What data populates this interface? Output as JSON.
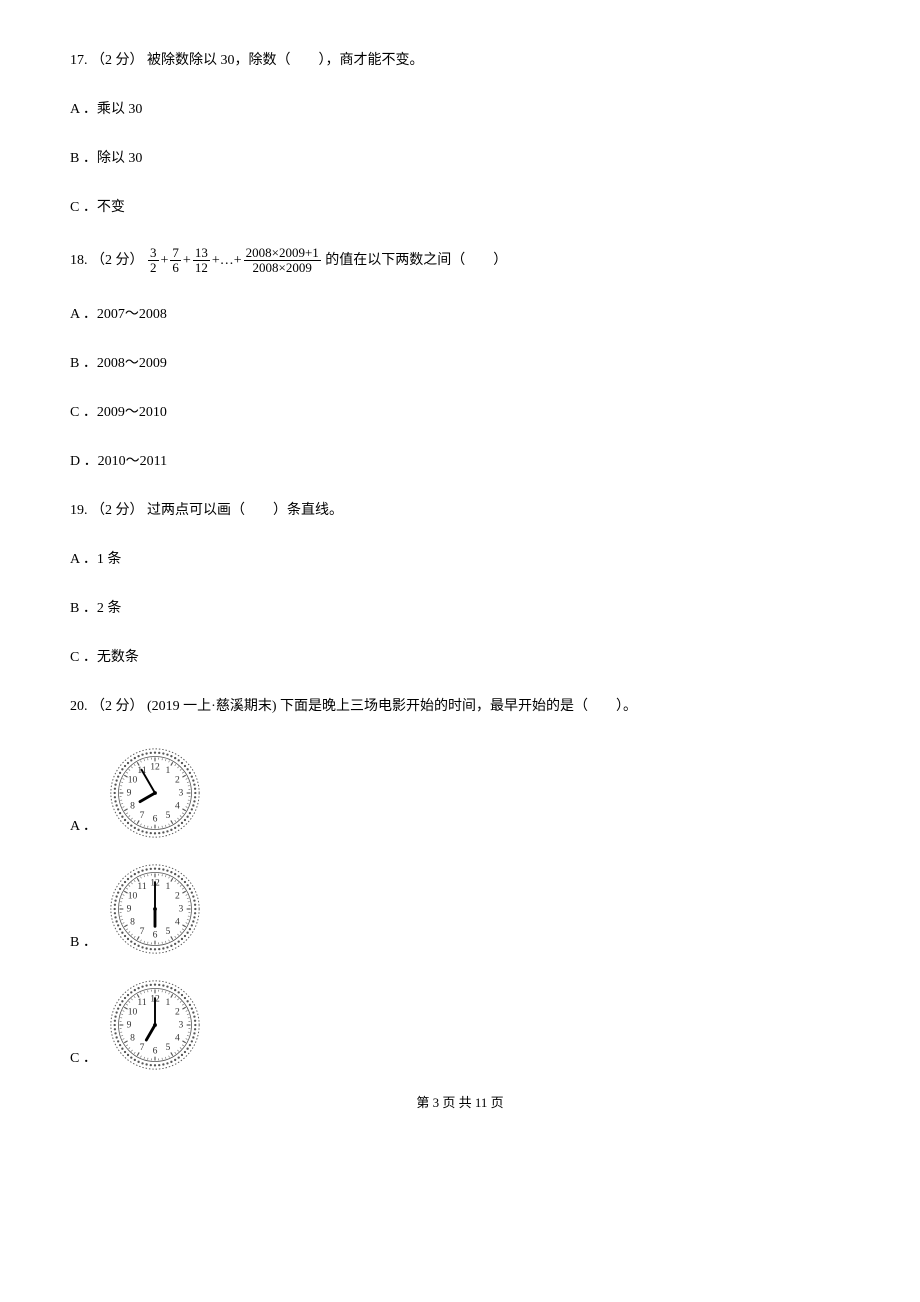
{
  "q17": {
    "stem": "17. （2 分） 被除数除以 30，除数（　　），商才能不变。",
    "choices": {
      "A": "A ．乘以 30",
      "B": "B ．除以 30",
      "C": "C ．不变"
    }
  },
  "q18": {
    "prefix": "18. （2 分） ",
    "frac1": {
      "num": "3",
      "den": "2"
    },
    "frac2": {
      "num": "7",
      "den": "6"
    },
    "frac3": {
      "num": "13",
      "den": "12"
    },
    "plus": "+",
    "dots": "+…+",
    "fracLast": {
      "num": "2008×2009+1",
      "den": "2008×2009"
    },
    "suffix": " 的值在以下两数之间（　　）",
    "choices": {
      "A": "A ．2007～2008",
      "B": "B ．2008～2009",
      "C": "C ．2009～2010",
      "D": "D ．2010～2011"
    }
  },
  "q19": {
    "stem": "19. （2 分） 过两点可以画（　　）条直线。",
    "choices": {
      "A": "A ．1 条",
      "B": "B ．2 条",
      "C": "C ．无数条"
    }
  },
  "q20": {
    "stem": "20. （2 分） (2019 一上·慈溪期末) 下面是晚上三场电影开始的时间，最早开始的是（　　）。",
    "labels": {
      "A": "A ．",
      "B": "B ．",
      "C": "C ．"
    },
    "clocks": {
      "A": {
        "hourAngle": 240,
        "minuteAngle": 330
      },
      "B": {
        "hourAngle": 180,
        "minuteAngle": 0
      },
      "C": {
        "hourAngle": 210,
        "minuteAngle": 0
      }
    },
    "clockStyle": {
      "rimOuter": 46,
      "rimInner": 38,
      "faceColor": "#ffffff",
      "rimStroke": "#555555",
      "numColor": "#333333",
      "numFontSize": 10,
      "handColor": "#000000",
      "hourHandLen": 18,
      "minuteHandLen": 28,
      "hourHandWidth": 3,
      "minuteHandWidth": 2
    }
  },
  "footer": "第 3 页 共 11 页"
}
